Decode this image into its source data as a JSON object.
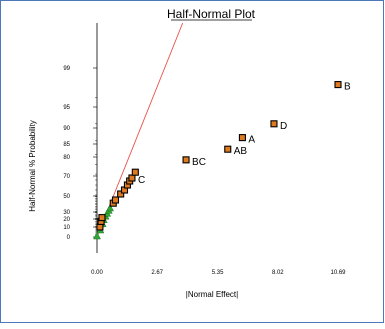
{
  "chart_data": {
    "type": "scatter",
    "title": "Half-Normal Plot",
    "xlabel": "|Normal Effect|",
    "ylabel": "Half-Normal % Probability",
    "xlim": [
      0.0,
      10.69
    ],
    "x_ticks": [
      "0.00",
      "2.67",
      "5.35",
      "8.02",
      "10.69"
    ],
    "y_ticks": [
      "0",
      "10",
      "20",
      "30",
      "50",
      "70",
      "80",
      "85",
      "90",
      "95",
      "99"
    ],
    "legend": "none",
    "grid": false,
    "reference_line": {
      "from": [
        0.0,
        0
      ],
      "to": [
        3.8,
        99.9
      ],
      "color": "#e8504a"
    },
    "series": [
      {
        "marker": "triangle",
        "color": "#2faa33",
        "points": [
          {
            "x": 0.0,
            "y": 1
          },
          {
            "x": 0.15,
            "y": 7
          },
          {
            "x": 0.25,
            "y": 14
          },
          {
            "x": 0.3,
            "y": 19
          },
          {
            "x": 0.38,
            "y": 24
          },
          {
            "x": 0.45,
            "y": 28
          },
          {
            "x": 0.52,
            "y": 32
          },
          {
            "x": 0.58,
            "y": 35
          }
        ]
      },
      {
        "marker": "square",
        "color": "#e07a20",
        "points": [
          {
            "x": 0.13,
            "y": 10
          },
          {
            "x": 0.18,
            "y": 17
          },
          {
            "x": 0.22,
            "y": 22
          },
          {
            "x": 0.72,
            "y": 41
          },
          {
            "x": 0.82,
            "y": 45
          },
          {
            "x": 1.05,
            "y": 52
          },
          {
            "x": 1.22,
            "y": 56
          },
          {
            "x": 1.35,
            "y": 61
          },
          {
            "x": 1.45,
            "y": 65
          },
          {
            "x": 1.55,
            "y": 68,
            "label": "C"
          },
          {
            "x": 1.7,
            "y": 72
          },
          {
            "x": 3.95,
            "y": 78.5,
            "label": "BC"
          },
          {
            "x": 5.8,
            "y": 83,
            "label": "AB"
          },
          {
            "x": 6.45,
            "y": 87,
            "label": "A"
          },
          {
            "x": 7.85,
            "y": 91,
            "label": "D"
          },
          {
            "x": 10.69,
            "y": 97.3,
            "label": "B"
          }
        ]
      }
    ]
  }
}
